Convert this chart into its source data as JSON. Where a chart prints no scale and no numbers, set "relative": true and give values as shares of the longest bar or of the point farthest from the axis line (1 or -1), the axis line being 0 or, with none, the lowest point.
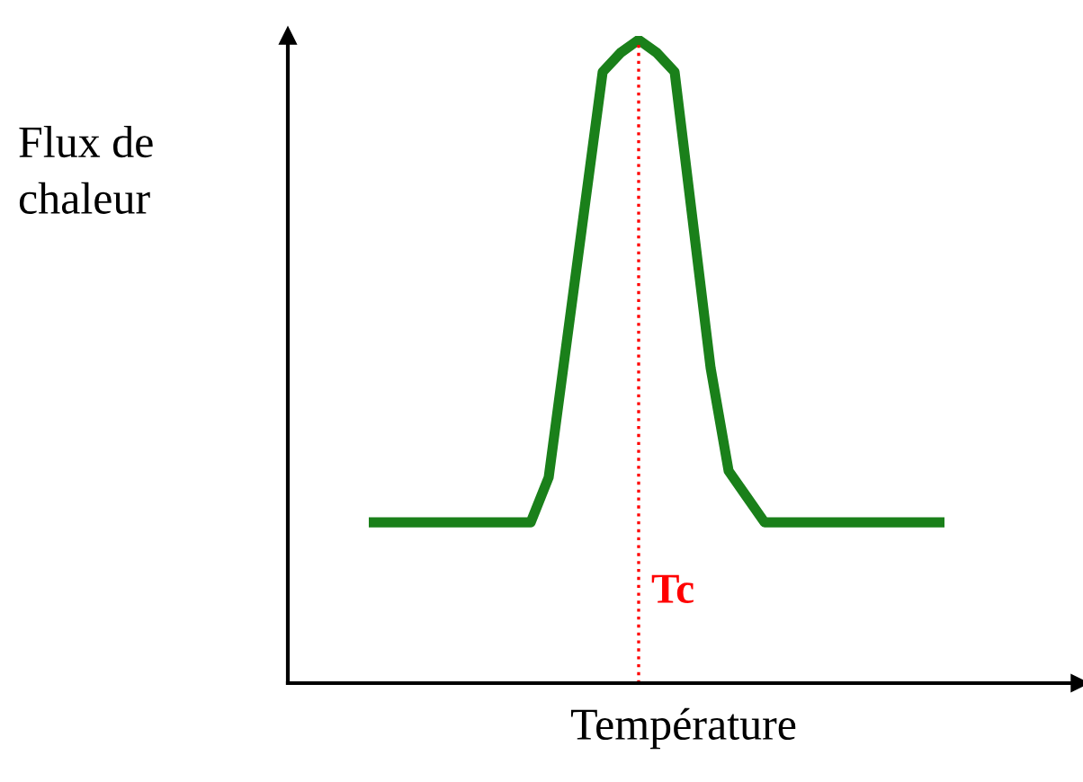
{
  "chart_data": {
    "type": "line",
    "relative": true,
    "xlabel": "Température",
    "ylabel": "Flux de\nchaleur",
    "categories": [
      null,
      null,
      null,
      null,
      null,
      null,
      null,
      null,
      null,
      null,
      null,
      null,
      null,
      null,
      null,
      null,
      null,
      null,
      null,
      null,
      null,
      null,
      null,
      null,
      null,
      null,
      null,
      null,
      null,
      null,
      null,
      null,
      null
    ],
    "series": [
      {
        "color": "#1a801a",
        "values": [
          0.25,
          0.25,
          0.25,
          0.25,
          0.25,
          0.25,
          0.25,
          0.25,
          0.25,
          0.25,
          0.32,
          0.53,
          0.74,
          0.95,
          0.98,
          1,
          0.98,
          0.95,
          0.72,
          0.49,
          0.33,
          0.29,
          0.25,
          0.25,
          0.25,
          0.25,
          0.25,
          0.25,
          0.25,
          0.25,
          0.25,
          0.25,
          0.25
        ]
      }
    ],
    "annotations": [
      "Tc"
    ],
    "tick_labels": false
  }
}
